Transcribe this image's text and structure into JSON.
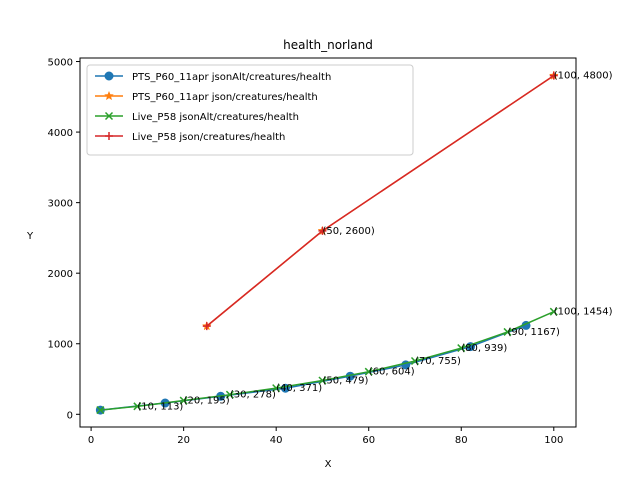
{
  "chart_data": {
    "type": "line",
    "title": "health_norland",
    "xlabel": "X",
    "ylabel": "Y",
    "xlim": [
      -2.4,
      104.8
    ],
    "ylim": [
      -180,
      5050
    ],
    "xticks": [
      0,
      20,
      40,
      60,
      80,
      100
    ],
    "yticks": [
      0,
      1000,
      2000,
      3000,
      4000,
      5000
    ],
    "grid": false,
    "legend_position": "upper-left",
    "series": [
      {
        "name": "PTS_P60_11apr jsonAlt/creatures/health",
        "color": "#1f77b4",
        "marker": "circle",
        "x": [
          2,
          16,
          28,
          42,
          56,
          68,
          82,
          94
        ],
        "y": [
          60,
          160,
          255,
          370,
          540,
          700,
          960,
          1260
        ]
      },
      {
        "name": "PTS_P60_11apr json/creatures/health",
        "color": "#ff7f0e",
        "marker": "star",
        "x": [
          25,
          50,
          100
        ],
        "y": [
          1250,
          2600,
          4800
        ]
      },
      {
        "name": "Live_P58 jsonAlt/creatures/health",
        "color": "#2ca02c",
        "marker": "x",
        "x": [
          2,
          10,
          20,
          30,
          40,
          50,
          60,
          70,
          80,
          90,
          100
        ],
        "y": [
          60,
          113,
          195,
          278,
          371,
          479,
          604,
          755,
          939,
          1167,
          1454
        ]
      },
      {
        "name": "Live_P58 json/creatures/health",
        "color": "#d62728",
        "marker": "plus",
        "x": [
          25,
          50,
          100
        ],
        "y": [
          1250,
          2600,
          4800
        ]
      }
    ],
    "annotations": [
      {
        "x": 10,
        "y": 113,
        "text": "(10, 113)"
      },
      {
        "x": 20,
        "y": 195,
        "text": "(20, 195)"
      },
      {
        "x": 30,
        "y": 278,
        "text": "(30, 278)"
      },
      {
        "x": 40,
        "y": 371,
        "text": "(40, 371)"
      },
      {
        "x": 50,
        "y": 479,
        "text": "(50, 479)"
      },
      {
        "x": 60,
        "y": 604,
        "text": "(60, 604)"
      },
      {
        "x": 70,
        "y": 755,
        "text": "(70, 755)"
      },
      {
        "x": 80,
        "y": 939,
        "text": "(80, 939)"
      },
      {
        "x": 90,
        "y": 1167,
        "text": "(90, 1167)"
      },
      {
        "x": 100,
        "y": 1454,
        "text": "(100, 1454)"
      },
      {
        "x": 50,
        "y": 2600,
        "text": "(50, 2600)"
      },
      {
        "x": 100,
        "y": 4800,
        "text": "(100, 4800)"
      }
    ]
  }
}
